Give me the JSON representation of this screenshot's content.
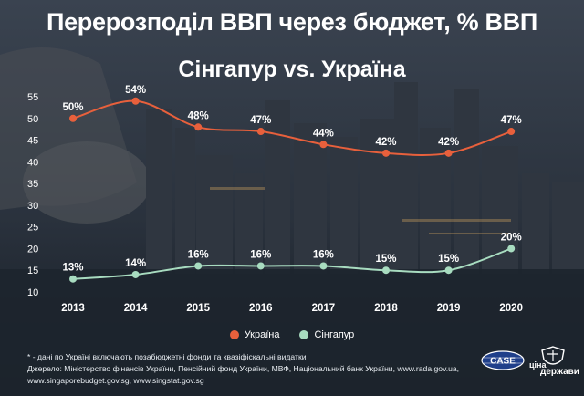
{
  "title": "Перерозподіл ВВП через бюджет, % ВВП",
  "subtitle": "Сінгапур vs. Україна",
  "chart_data": {
    "type": "line",
    "x": [
      "2013",
      "2014",
      "2015",
      "2016",
      "2017",
      "2018",
      "2019",
      "2020"
    ],
    "series": [
      {
        "name": "Україна",
        "color": "#e8603c",
        "values": [
          50,
          54,
          48,
          47,
          44,
          42,
          42,
          47
        ],
        "labels": [
          "50%",
          "54%",
          "48%",
          "47%",
          "44%",
          "42%",
          "42%",
          "47%"
        ]
      },
      {
        "name": "Сінгапур",
        "color": "#a8dcc0",
        "values": [
          13,
          14,
          16,
          16,
          16,
          15,
          15,
          20
        ],
        "labels": [
          "13%",
          "14%",
          "16%",
          "16%",
          "16%",
          "15%",
          "15%",
          "20%"
        ]
      }
    ],
    "yticks": [
      "10",
      "15",
      "20",
      "25",
      "30",
      "35",
      "40",
      "45",
      "50",
      "55"
    ],
    "ylim": [
      10,
      55
    ],
    "grid": false,
    "legend": "bottom-center"
  },
  "footnote": {
    "line1": "* - дані по Україні включають позабюджетні фонди та квазіфіскальні видатки",
    "line2": "Джерело: Міністерство фінансів України, Пенсійний фонд України, МВФ, Національний банк України, www.rada.gov.ua,",
    "line3": "www.singaporebudget.gov.sg, www.singstat.gov.sg"
  },
  "logos": {
    "case": "CASE",
    "cina_line1": "ціна",
    "cina_line2": "держави"
  }
}
